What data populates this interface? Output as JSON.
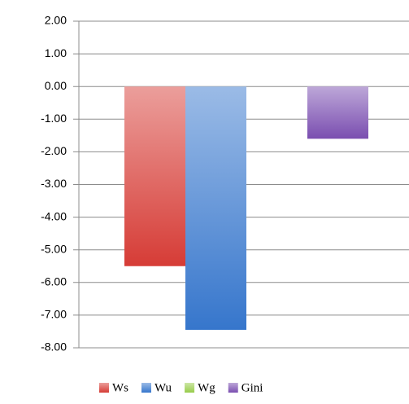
{
  "chart_data": {
    "type": "bar",
    "categories": [
      null
    ],
    "series": [
      {
        "name": "Ws",
        "color": "#d63c36",
        "values": [
          -5.5
        ]
      },
      {
        "name": "Wu",
        "color": "#3676cc",
        "values": [
          -7.45
        ]
      },
      {
        "name": "Wg",
        "color": "#98cc4a",
        "values": [
          0
        ]
      },
      {
        "name": "Gini",
        "color": "#7a4eb0",
        "values": [
          -1.6
        ]
      }
    ],
    "ylim": [
      -8,
      2
    ],
    "yticks": [
      {
        "value": 2,
        "label": "2.00"
      },
      {
        "value": 1,
        "label": "1.00"
      },
      {
        "value": 0,
        "label": "0.00"
      },
      {
        "value": -1,
        "label": "-1.00"
      },
      {
        "value": -2,
        "label": "-2.00"
      },
      {
        "value": -3,
        "label": "-3.00"
      },
      {
        "value": -4,
        "label": "-4.00"
      },
      {
        "value": -5,
        "label": "-5.00"
      },
      {
        "value": -6,
        "label": "-6.00"
      },
      {
        "value": -7,
        "label": "-7.00"
      },
      {
        "value": -8,
        "label": "-8.00"
      }
    ],
    "grid": true,
    "legend": "bottom"
  }
}
